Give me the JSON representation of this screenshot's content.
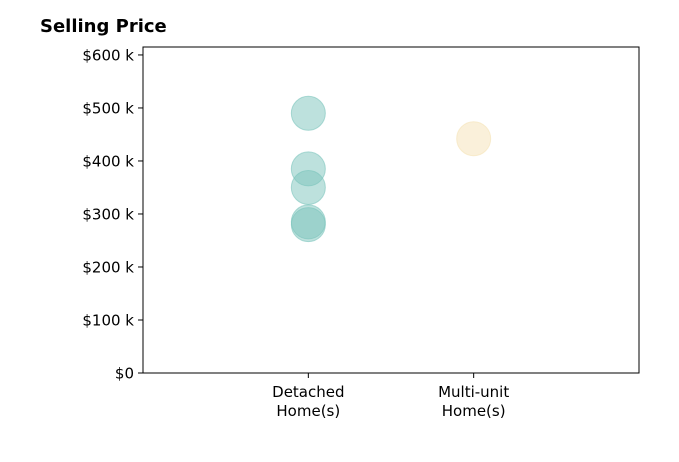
{
  "chart_data": {
    "type": "scatter",
    "title": "Selling Price",
    "xlabel": "",
    "ylabel": "",
    "categories": [
      {
        "lines": [
          "Detached",
          "Home(s)"
        ]
      },
      {
        "lines": [
          "Multi-unit",
          "Home(s)"
        ]
      }
    ],
    "x_range": [
      -1,
      2
    ],
    "ylim": [
      0,
      615000
    ],
    "y_ticks": [
      {
        "value": 0,
        "label": "$0"
      },
      {
        "value": 100000,
        "label": "$100 k"
      },
      {
        "value": 200000,
        "label": "$200 k"
      },
      {
        "value": 300000,
        "label": "$300 k"
      },
      {
        "value": 400000,
        "label": "$400 k"
      },
      {
        "value": 500000,
        "label": "$500 k"
      },
      {
        "value": 600000,
        "label": "$600 k"
      }
    ],
    "series": [
      {
        "category_index": 0,
        "color": "#7cc4bc",
        "values": [
          490000,
          385000,
          350000,
          285000,
          280000
        ]
      },
      {
        "category_index": 1,
        "color": "#f5e2b5",
        "values": [
          442000
        ]
      }
    ],
    "grid": false,
    "legend": "none"
  }
}
